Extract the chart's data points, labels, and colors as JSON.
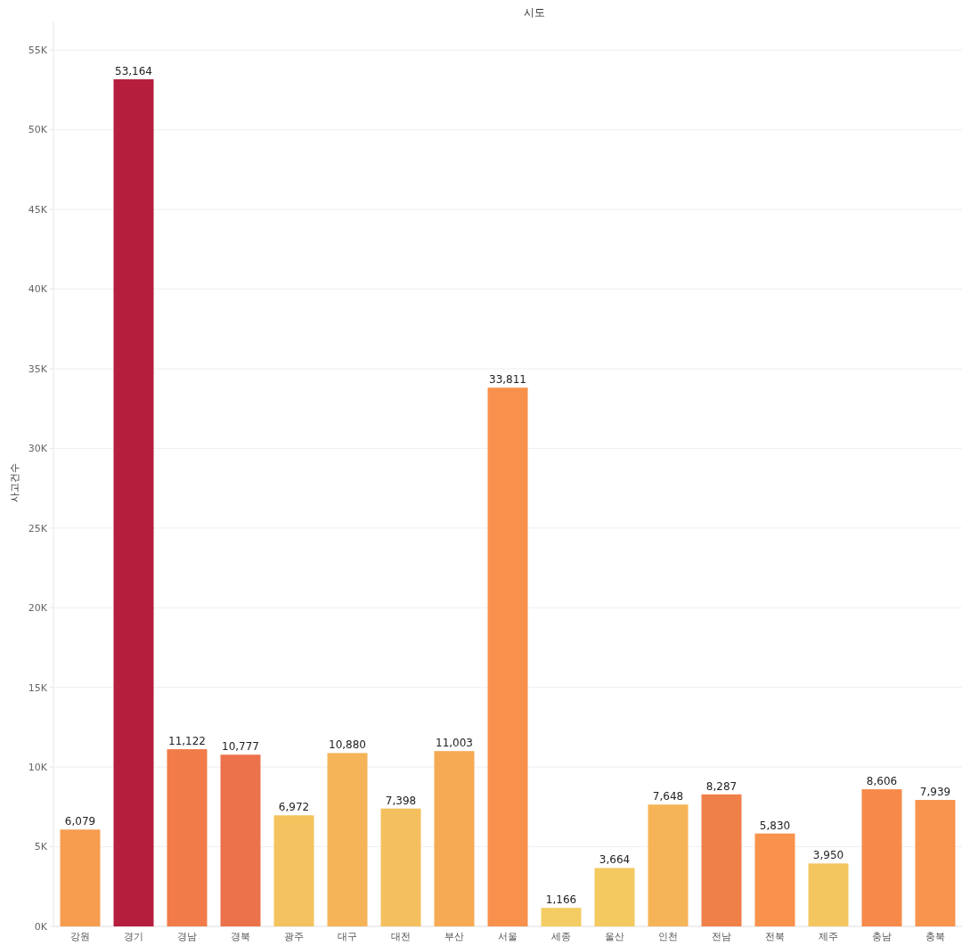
{
  "chart_data": {
    "type": "bar",
    "xlabel": "시도",
    "ylabel": "사고건수",
    "categories": [
      "강원",
      "경기",
      "경남",
      "경북",
      "광주",
      "대구",
      "대전",
      "부산",
      "서울",
      "세종",
      "울산",
      "인천",
      "전남",
      "전북",
      "제주",
      "충남",
      "충북"
    ],
    "values": [
      6079,
      53164,
      11122,
      10777,
      6972,
      10880,
      7398,
      11003,
      33811,
      1166,
      3664,
      7648,
      8287,
      5830,
      3950,
      8606,
      7939
    ],
    "colors": [
      "#f69d50",
      "#b61e3e",
      "#f17c4a",
      "#ec724b",
      "#f3c35f",
      "#f6b458",
      "#f4c05e",
      "#f6aa53",
      "#f8914c",
      "#f3cd63",
      "#f4c960",
      "#f6b458",
      "#f08049",
      "#f8924c",
      "#f4c660",
      "#f78a4a",
      "#f8944d"
    ],
    "ylim": [
      0,
      56800
    ],
    "yticks": [
      {
        "value": 0,
        "label": "0K"
      },
      {
        "value": 5000,
        "label": "5K"
      },
      {
        "value": 10000,
        "label": "10K"
      },
      {
        "value": 15000,
        "label": "15K"
      },
      {
        "value": 20000,
        "label": "20K"
      },
      {
        "value": 25000,
        "label": "25K"
      },
      {
        "value": 30000,
        "label": "30K"
      },
      {
        "value": 35000,
        "label": "35K"
      },
      {
        "value": 40000,
        "label": "40K"
      },
      {
        "value": 45000,
        "label": "45K"
      },
      {
        "value": 50000,
        "label": "50K"
      },
      {
        "value": 55000,
        "label": "55K"
      }
    ],
    "value_labels": [
      "6,079",
      "53,164",
      "11,122",
      "10,777",
      "6,972",
      "10,880",
      "7,398",
      "11,003",
      "33,811",
      "1,166",
      "3,664",
      "7,648",
      "8,287",
      "5,830",
      "3,950",
      "8,606",
      "7,939"
    ],
    "grid": "y"
  }
}
